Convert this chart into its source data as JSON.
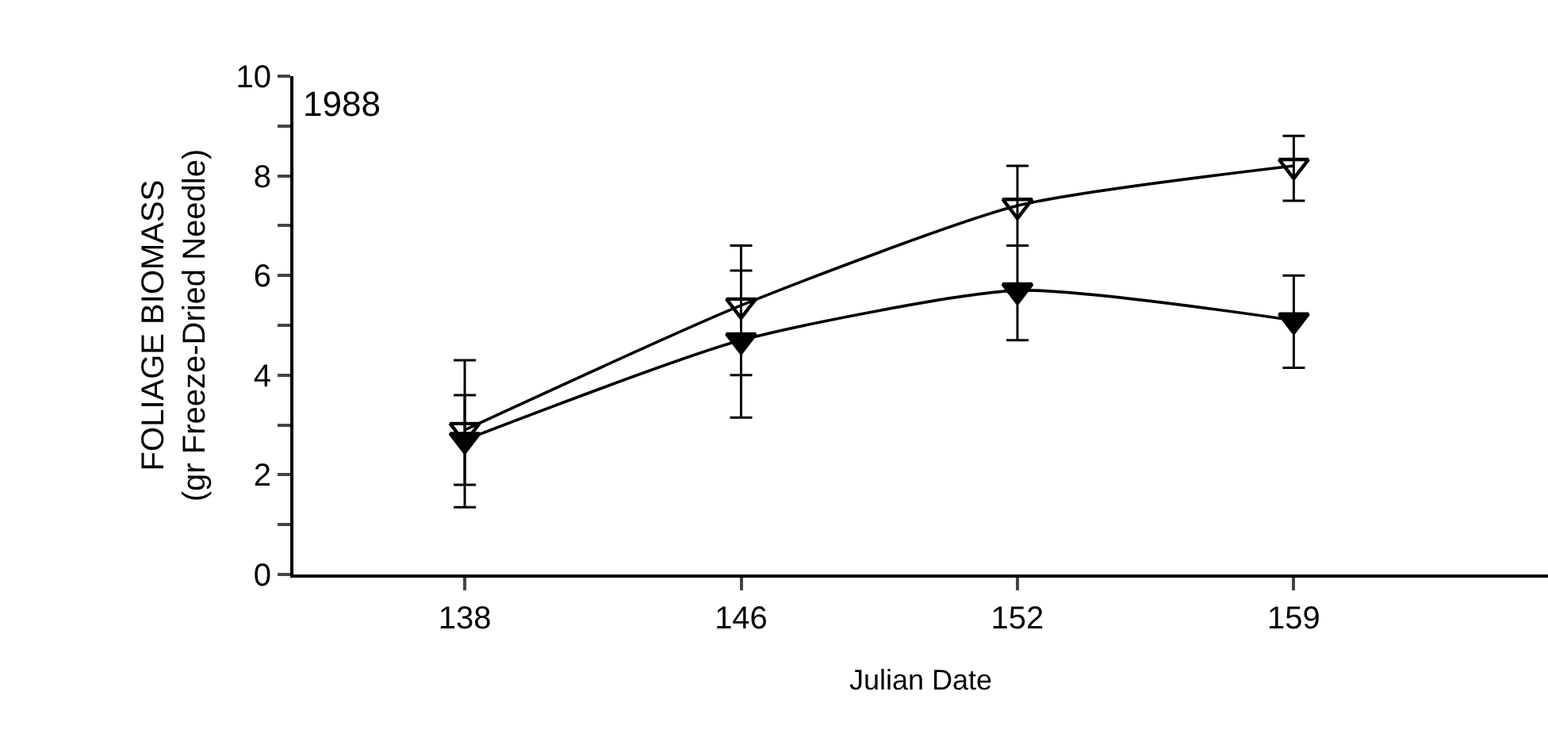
{
  "chart_data": {
    "type": "line",
    "xlabel": "Julian Date",
    "ylabel": "FOLIAGE BIOMASS\n(gr Freeze-Dried Needle)",
    "annotations": [
      "1988"
    ],
    "categories": [
      "138",
      "146",
      "152",
      "159"
    ],
    "series": [
      {
        "color": "#000000",
        "marker": "triangle-open",
        "values": [
          2.9,
          5.4,
          7.4,
          8.2
        ],
        "errors": [
          [
            1.8,
            3.6
          ],
          [
            4.0,
            6.6
          ],
          [
            6.6,
            8.2
          ],
          [
            7.5,
            8.8
          ]
        ]
      },
      {
        "color": "#000000",
        "marker": "triangle",
        "values": [
          2.7,
          4.7,
          5.7,
          5.1
        ],
        "errors": [
          [
            1.35,
            4.3
          ],
          [
            3.15,
            6.1
          ],
          [
            4.7,
            6.6
          ],
          [
            4.15,
            6.0
          ]
        ]
      }
    ],
    "ylim": [
      0,
      10
    ],
    "yticks": [
      0,
      {
        "value": 1,
        "label": null
      },
      2,
      {
        "value": 3,
        "label": null
      },
      4,
      {
        "value": 5,
        "label": null
      },
      6,
      {
        "value": 7,
        "label": null
      },
      8,
      {
        "value": 9,
        "label": null
      },
      10
    ],
    "line_style": "solid"
  }
}
